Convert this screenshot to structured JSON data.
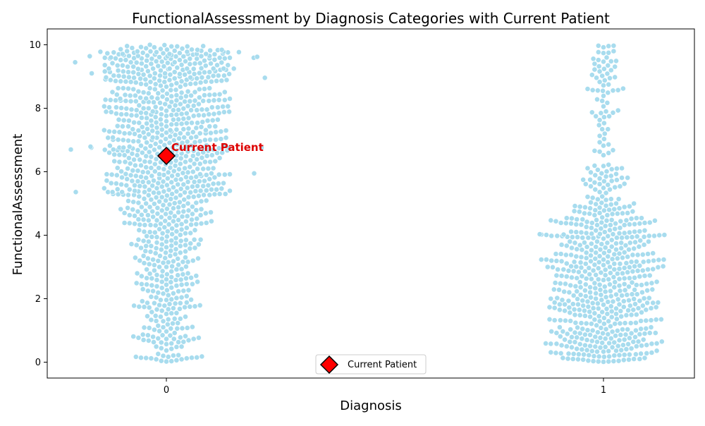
{
  "chart_data": {
    "type": "scatter",
    "subtype": "swarm",
    "title": "FunctionalAssessment by Diagnosis Categories with Current Patient",
    "xlabel": "Diagnosis",
    "ylabel": "FunctionalAssessment",
    "categories": [
      "0",
      "1"
    ],
    "ylim": [
      -0.5,
      10.5
    ],
    "yticks": [
      0,
      2,
      4,
      6,
      8,
      10
    ],
    "grid": false,
    "point_color": "#a8dcee",
    "point_edge": "#ffffff",
    "distributions": [
      {
        "category": "0",
        "approx_count": 1000,
        "range": [
          0,
          10
        ],
        "note": "dense across 0-10, widest spread 5-10"
      },
      {
        "category": "1",
        "approx_count": 650,
        "range": [
          0,
          10
        ],
        "note": "dense 0-5, sparse 5-10"
      }
    ],
    "current_patient": {
      "category": "0",
      "value": 6.5,
      "label": "Current Patient",
      "marker": "diamond",
      "color": "#ff0000",
      "label_color": "#dd0000"
    },
    "legend": {
      "position": "bottom-center",
      "entries": [
        "Current Patient"
      ]
    }
  }
}
